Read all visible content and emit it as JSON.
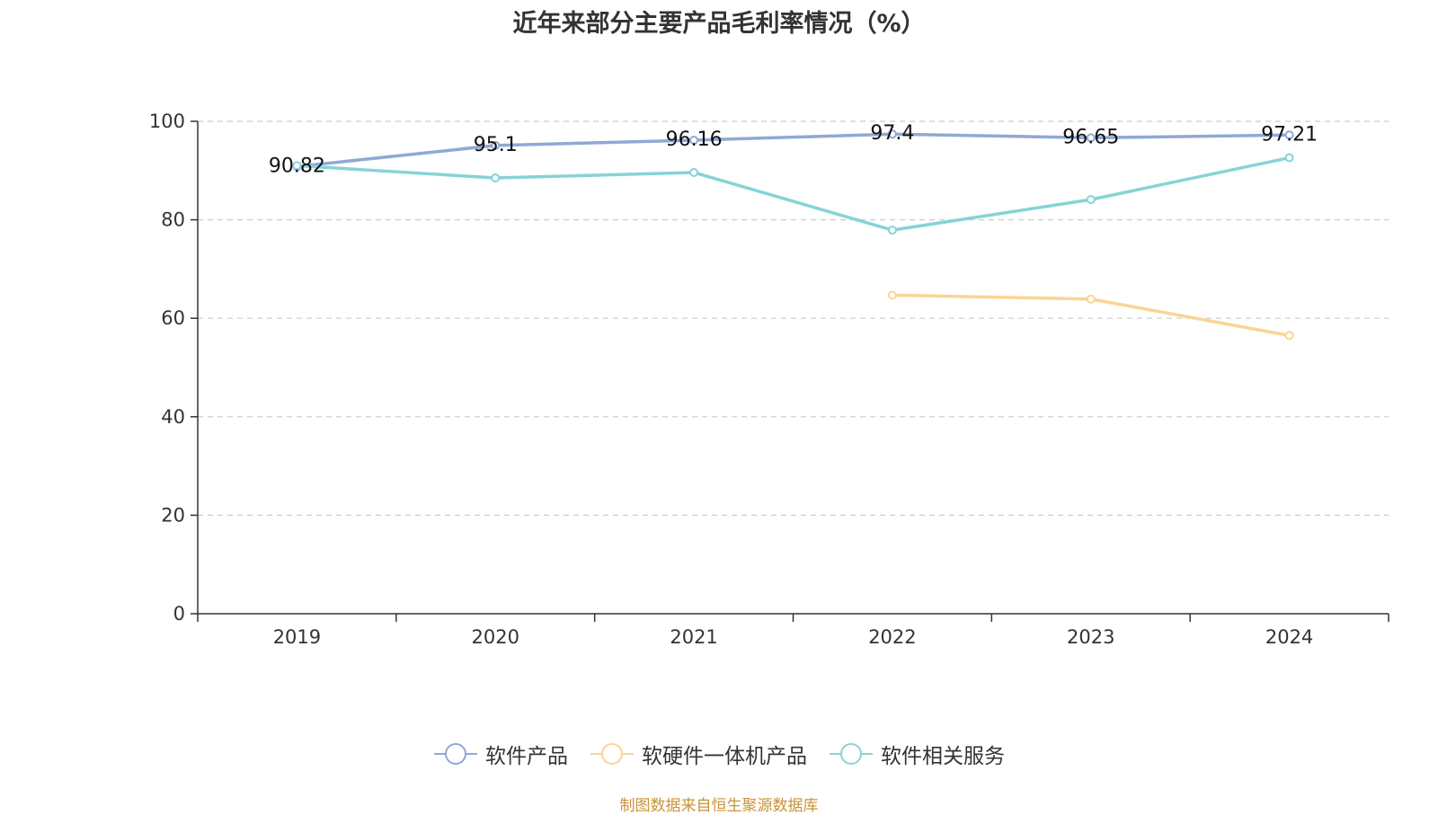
{
  "title": "近年来部分主要产品毛利率情况（%）",
  "source": "制图数据来自恒生聚源数据库",
  "chart_data": {
    "type": "line",
    "categories": [
      "2019",
      "2020",
      "2021",
      "2022",
      "2023",
      "2024"
    ],
    "ylim": [
      0,
      100
    ],
    "yticks": [
      "0",
      "20",
      "40",
      "60",
      "80",
      "100"
    ],
    "grid": true,
    "legend_position": "bottom-center",
    "series": [
      {
        "name": "软件产品",
        "color": "#8fa9d4",
        "values": [
          90.82,
          95.1,
          96.16,
          97.4,
          96.65,
          97.21
        ],
        "labels": [
          "90.82",
          "95.1",
          "96.16",
          "97.4",
          "96.65",
          "97.21"
        ]
      },
      {
        "name": "软硬件一体机产品",
        "color": "#f9d593",
        "values": [
          null,
          null,
          null,
          64.7,
          63.9,
          56.5
        ]
      },
      {
        "name": "软件相关服务",
        "color": "#86d3d6",
        "values": [
          91.0,
          88.5,
          89.6,
          77.9,
          84.1,
          92.6
        ]
      }
    ]
  }
}
